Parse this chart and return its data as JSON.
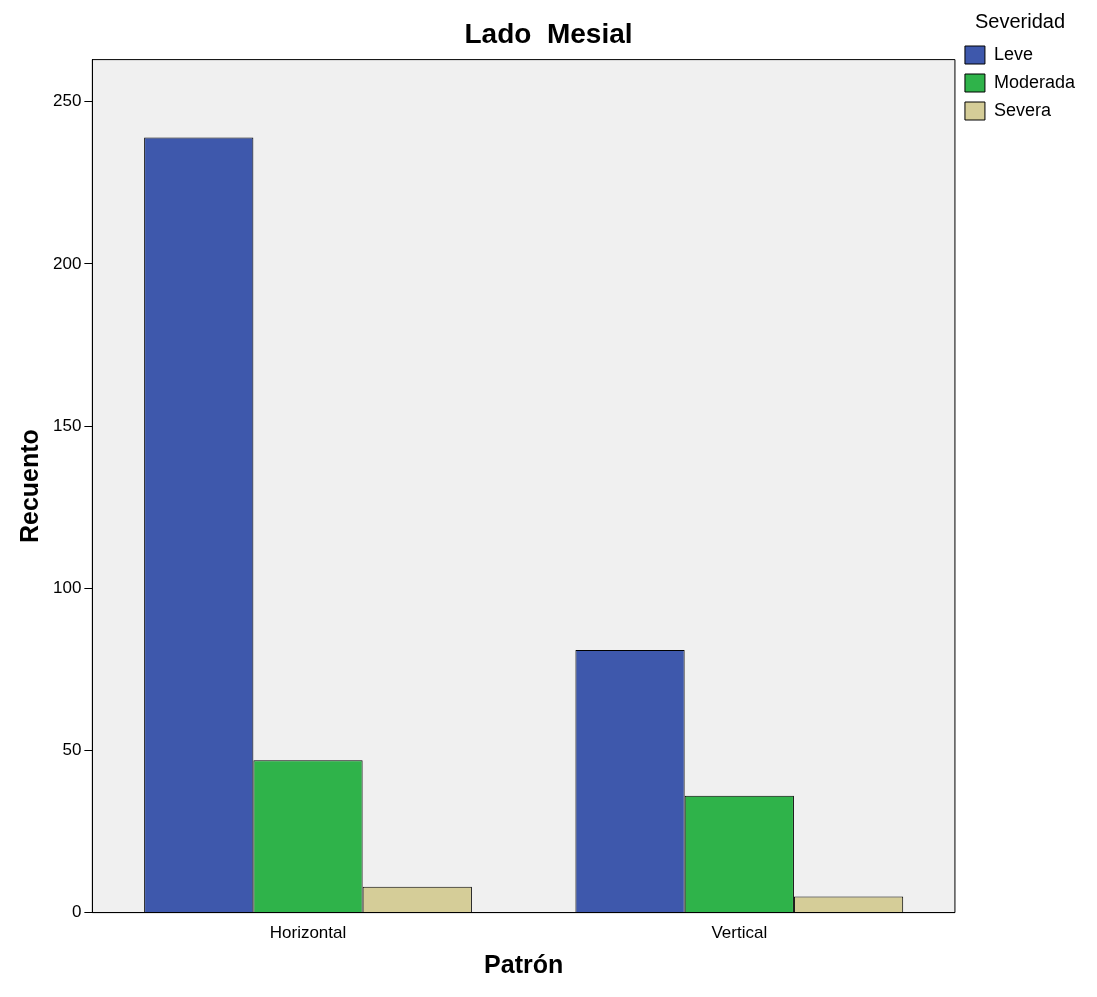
{
  "chart_data": {
    "type": "bar",
    "title": "Lado  Mesial",
    "xlabel": "Patrón",
    "ylabel": "Recuento",
    "legend_title": "Severidad",
    "categories": [
      "Horizontal",
      "Vertical"
    ],
    "series": [
      {
        "name": "Leve",
        "color": "#3e58ac",
        "values": [
          239,
          81
        ]
      },
      {
        "name": "Moderada",
        "color": "#2fb34a",
        "values": [
          47,
          36
        ]
      },
      {
        "name": "Severa",
        "color": "#d5cd98",
        "values": [
          8,
          5
        ]
      }
    ],
    "ylim": [
      0,
      263
    ],
    "yticks": [
      0,
      50,
      100,
      150,
      200,
      250
    ],
    "grid": false,
    "legend": "right"
  }
}
